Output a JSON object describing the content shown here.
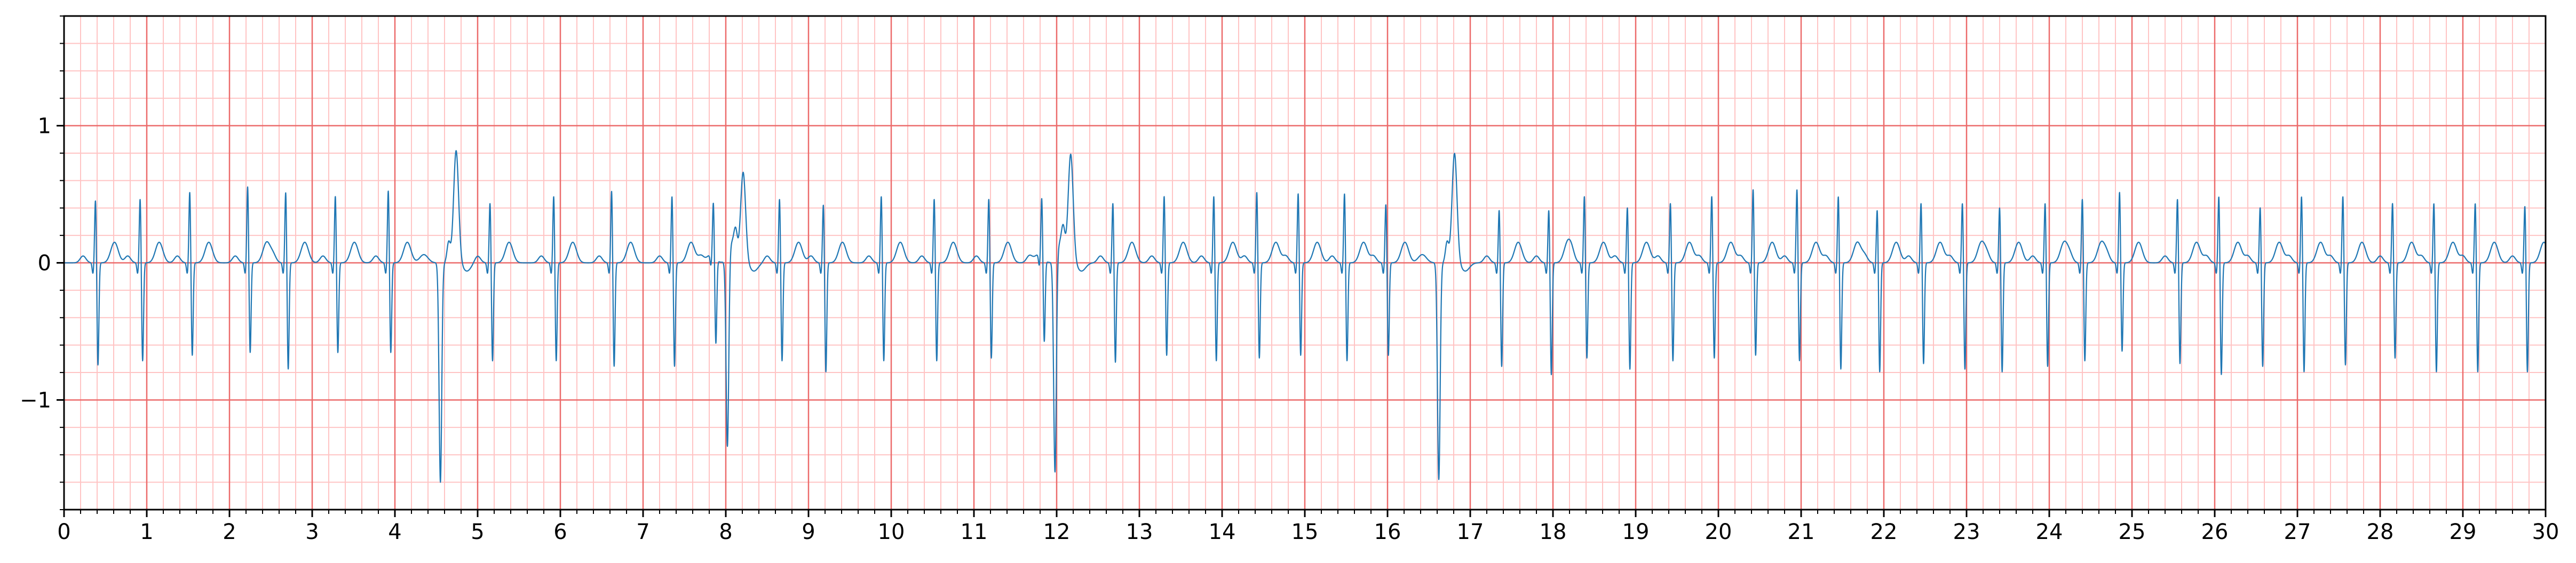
{
  "chart_data": {
    "type": "line",
    "title": "",
    "xlabel": "",
    "ylabel": "",
    "xlim": [
      0,
      30
    ],
    "ylim": [
      -1.8,
      1.8
    ],
    "x_ticks": [
      0,
      1,
      2,
      3,
      4,
      5,
      6,
      7,
      8,
      9,
      10,
      11,
      12,
      13,
      14,
      15,
      16,
      17,
      18,
      19,
      20,
      21,
      22,
      23,
      24,
      25,
      26,
      27,
      28,
      29,
      30
    ],
    "x_tick_labels": [
      "0",
      "1",
      "2",
      "3",
      "4",
      "5",
      "6",
      "7",
      "8",
      "9",
      "10",
      "11",
      "12",
      "13",
      "14",
      "15",
      "16",
      "17",
      "18",
      "19",
      "20",
      "21",
      "22",
      "23",
      "24",
      "25",
      "26",
      "27",
      "28",
      "29",
      "30"
    ],
    "y_ticks": [
      -1,
      0,
      1
    ],
    "y_tick_labels": [
      "−1",
      "0",
      "1"
    ],
    "grid": {
      "major": true,
      "minor": true,
      "x_major_step": 1,
      "x_minor_step": 0.2,
      "y_major_step": 1,
      "y_minor_step": 0.2
    },
    "legend": "none",
    "series": [
      {
        "color": "#1f77b4",
        "beats_normal_r_times": [
          0.38,
          0.92,
          1.52,
          2.22,
          2.68,
          3.28,
          3.92,
          5.15,
          5.92,
          6.62,
          7.35,
          7.85,
          8.65,
          9.18,
          9.88,
          10.52,
          11.18,
          11.82,
          12.68,
          13.3,
          13.9,
          14.42,
          14.92,
          15.48,
          15.98,
          17.35,
          17.95,
          18.38,
          18.9,
          19.42,
          19.92,
          20.42,
          20.95,
          21.45,
          21.92,
          22.45,
          22.95,
          23.4,
          23.95,
          24.4,
          24.85,
          25.55,
          26.05,
          26.55,
          27.05,
          27.55,
          28.15,
          28.65,
          29.15,
          29.75
        ],
        "beats_normal_r_amplitudes": [
          0.47,
          0.48,
          0.53,
          0.57,
          0.53,
          0.5,
          0.54,
          0.45,
          0.5,
          0.54,
          0.5,
          0.4,
          0.48,
          0.44,
          0.5,
          0.48,
          0.48,
          0.44,
          0.45,
          0.5,
          0.5,
          0.53,
          0.52,
          0.52,
          0.44,
          0.4,
          0.4,
          0.5,
          0.42,
          0.45,
          0.5,
          0.55,
          0.55,
          0.5,
          0.4,
          0.45,
          0.45,
          0.42,
          0.45,
          0.48,
          0.53,
          0.48,
          0.5,
          0.42,
          0.5,
          0.5,
          0.45,
          0.45,
          0.45,
          0.43
        ],
        "beats_normal_s_amplitudes": [
          -0.75,
          -0.72,
          -0.68,
          -0.66,
          -0.78,
          -0.66,
          -0.66,
          -0.72,
          -0.72,
          -0.76,
          -0.76,
          -0.62,
          -0.72,
          -0.8,
          -0.72,
          -0.72,
          -0.7,
          -0.6,
          -0.73,
          -0.68,
          -0.72,
          -0.7,
          -0.68,
          -0.72,
          -0.68,
          -0.76,
          -0.82,
          -0.7,
          -0.78,
          -0.72,
          -0.7,
          -0.68,
          -0.72,
          -0.78,
          -0.8,
          -0.74,
          -0.78,
          -0.8,
          -0.76,
          -0.72,
          -0.65,
          -0.74,
          -0.82,
          -0.76,
          -0.8,
          -0.75,
          -0.7,
          -0.8,
          -0.8,
          -0.8
        ],
        "beats_ectopic_times": [
          4.55,
          8.02,
          11.98,
          16.62
        ],
        "beats_ectopic_troughs": [
          -1.6,
          -1.4,
          -1.57,
          -1.58
        ],
        "beats_ectopic_peaks": [
          0.82,
          0.66,
          0.79,
          0.8
        ]
      }
    ]
  }
}
